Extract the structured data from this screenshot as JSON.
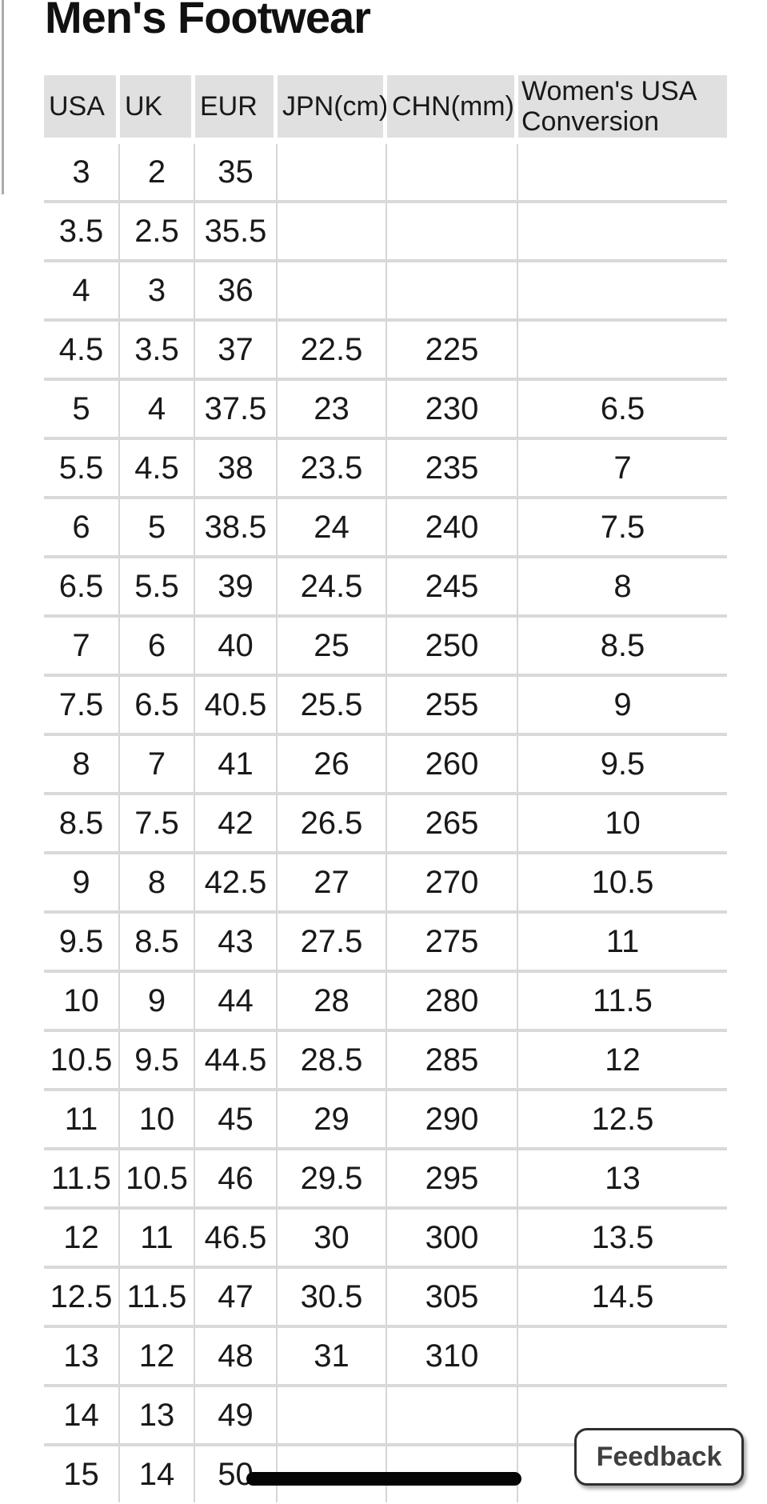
{
  "page": {
    "title": "Men's Footwear"
  },
  "table": {
    "columns": [
      "USA",
      "UK",
      "EUR",
      "JPN(cm)",
      "CHN(mm)",
      "Women's USA Conversion"
    ],
    "rows": [
      [
        "3",
        "2",
        "35",
        "",
        "",
        ""
      ],
      [
        "3.5",
        "2.5",
        "35.5",
        "",
        "",
        ""
      ],
      [
        "4",
        "3",
        "36",
        "",
        "",
        ""
      ],
      [
        "4.5",
        "3.5",
        "37",
        "22.5",
        "225",
        ""
      ],
      [
        "5",
        "4",
        "37.5",
        "23",
        "230",
        "6.5"
      ],
      [
        "5.5",
        "4.5",
        "38",
        "23.5",
        "235",
        "7"
      ],
      [
        "6",
        "5",
        "38.5",
        "24",
        "240",
        "7.5"
      ],
      [
        "6.5",
        "5.5",
        "39",
        "24.5",
        "245",
        "8"
      ],
      [
        "7",
        "6",
        "40",
        "25",
        "250",
        "8.5"
      ],
      [
        "7.5",
        "6.5",
        "40.5",
        "25.5",
        "255",
        "9"
      ],
      [
        "8",
        "7",
        "41",
        "26",
        "260",
        "9.5"
      ],
      [
        "8.5",
        "7.5",
        "42",
        "26.5",
        "265",
        "10"
      ],
      [
        "9",
        "8",
        "42.5",
        "27",
        "270",
        "10.5"
      ],
      [
        "9.5",
        "8.5",
        "43",
        "27.5",
        "275",
        "11"
      ],
      [
        "10",
        "9",
        "44",
        "28",
        "280",
        "11.5"
      ],
      [
        "10.5",
        "9.5",
        "44.5",
        "28.5",
        "285",
        "12"
      ],
      [
        "11",
        "10",
        "45",
        "29",
        "290",
        "12.5"
      ],
      [
        "11.5",
        "10.5",
        "46",
        "29.5",
        "295",
        "13"
      ],
      [
        "12",
        "11",
        "46.5",
        "30",
        "300",
        "13.5"
      ],
      [
        "12.5",
        "11.5",
        "47",
        "30.5",
        "305",
        "14.5"
      ],
      [
        "13",
        "12",
        "48",
        "31",
        "310",
        ""
      ],
      [
        "14",
        "13",
        "49",
        "",
        "",
        ""
      ],
      [
        "15",
        "14",
        "50",
        "",
        "",
        ""
      ]
    ]
  },
  "feedback": {
    "label": "Feedback"
  },
  "colors": {
    "header_bg": "#e0e0e0",
    "row_separator": "#d9d9d9",
    "column_separator": "#d6d6d6",
    "text": "#191919",
    "scrollbar_thumb": "#050505"
  }
}
